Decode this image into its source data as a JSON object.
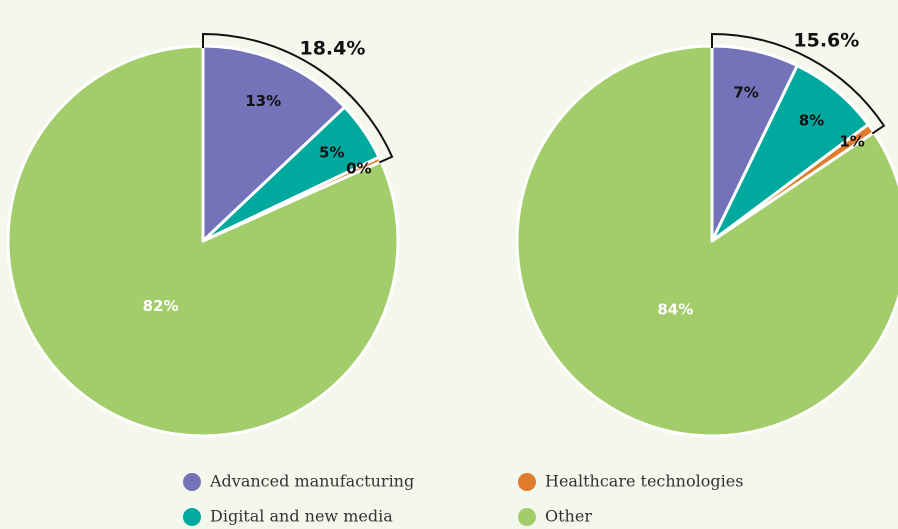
{
  "chart_data": [
    {
      "type": "pie",
      "annotation": "18.4%",
      "categories": [
        "Advanced manufacturing",
        "Digital and new media",
        "Healthcare technologies",
        "Other"
      ],
      "values": [
        13,
        5,
        0.4,
        82
      ],
      "value_labels": [
        "13%",
        "5%",
        "0%",
        "82%"
      ],
      "colors": [
        "#7472b8",
        "#00a99d",
        "#e07b2c",
        "#a3cd6a"
      ]
    },
    {
      "type": "pie",
      "annotation": "15.6%",
      "categories": [
        "Advanced manufacturing",
        "Digital and new media",
        "Healthcare technologies",
        "Other"
      ],
      "values": [
        7.2,
        7.6,
        0.8,
        84.4
      ],
      "value_labels": [
        "7%",
        "8%",
        "1%",
        "84%"
      ],
      "colors": [
        "#7472b8",
        "#00a99d",
        "#e07b2c",
        "#a3cd6a"
      ]
    }
  ]
}
